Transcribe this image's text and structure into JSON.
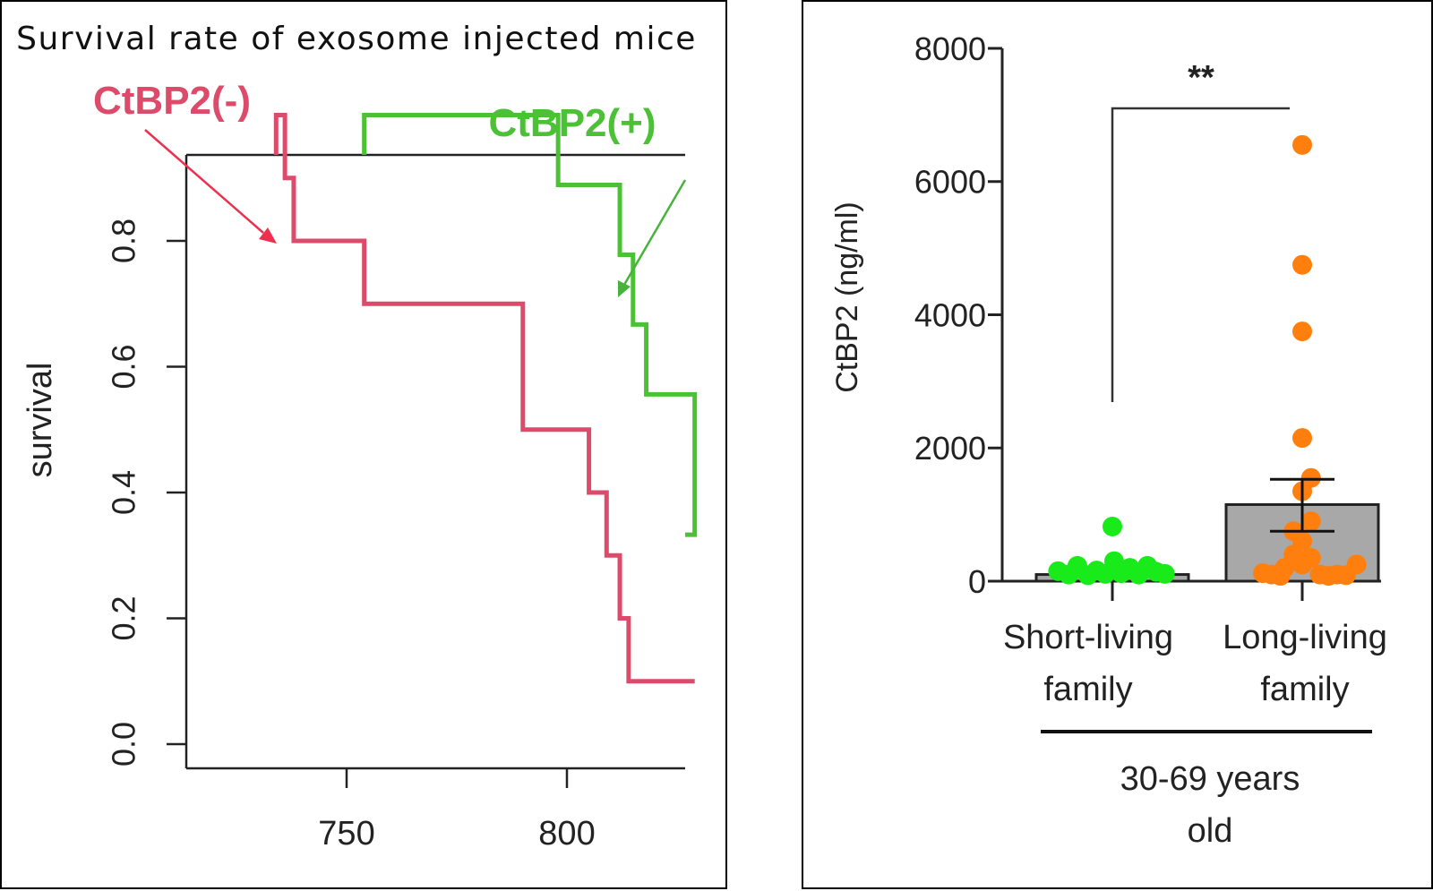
{
  "colors": {
    "ctbp2_minus": "#DC4B6A",
    "ctbp2_plus": "#4CC136",
    "arrow_minus": "#EE2F4E",
    "arrow_plus": "#47B33A",
    "short_points": "#19EA19",
    "long_points": "#FF7F0E",
    "bar_fill": "#A8A8A8",
    "axis": "#222222"
  },
  "chart_data": [
    {
      "type": "line",
      "title": "Survival rate of exosome injected mice",
      "ylabel": "survival",
      "xlabel": "",
      "xlim": [
        716,
        829
      ],
      "ylim": [
        0,
        1
      ],
      "x_ticks": [
        750,
        800
      ],
      "y_ticks": [
        "0.0",
        "0.2",
        "0.4",
        "0.6",
        "0.8"
      ],
      "y_tick_values": [
        0,
        0.2,
        0.4,
        0.6,
        0.8
      ],
      "step": true,
      "series": [
        {
          "name": "CtBP2(-)",
          "color": "#DC4B6A",
          "x": [
            734,
            736,
            738,
            754,
            790,
            805,
            809,
            812,
            814,
            816,
            829
          ],
          "y": [
            1.0,
            0.9,
            0.8,
            0.7,
            0.5,
            0.4,
            0.3,
            0.2,
            0.1,
            0.1,
            0.1
          ]
        },
        {
          "name": "CtBP2(+)",
          "color": "#4CC136",
          "x": [
            754,
            798,
            812,
            815,
            818,
            829
          ],
          "y": [
            1.0,
            0.889,
            0.778,
            0.667,
            0.556,
            0.333
          ]
        }
      ],
      "annotations": [
        "CtBP2(-)",
        "CtBP2(+)"
      ]
    },
    {
      "type": "bar",
      "ylabel": "CtBP2 (ng/ml)",
      "ylim": [
        0,
        8000
      ],
      "y_ticks": [
        "0",
        "2000",
        "4000",
        "6000",
        "8000"
      ],
      "y_tick_values": [
        0,
        2000,
        4000,
        6000,
        8000
      ],
      "categories": [
        "Short-living family",
        "Long-living family"
      ],
      "category_lines": [
        [
          "Short-living",
          "family"
        ],
        [
          "Long-living",
          "family"
        ]
      ],
      "group_label": [
        "30-69 years",
        "old"
      ],
      "bars": [
        {
          "category": "Short-living family",
          "mean": 100,
          "sem_low": 80,
          "sem_high": 120
        },
        {
          "category": "Long-living family",
          "mean": 1150,
          "sem_low": 750,
          "sem_high": 1530
        }
      ],
      "points": {
        "Short-living family": [
          {
            "offset": -0.62,
            "value": 150
          },
          {
            "offset": -0.5,
            "value": 100
          },
          {
            "offset": -0.4,
            "value": 230
          },
          {
            "offset": -0.28,
            "value": 90
          },
          {
            "offset": -0.18,
            "value": 160
          },
          {
            "offset": -0.08,
            "value": 110
          },
          {
            "offset": 0.0,
            "value": 820
          },
          {
            "offset": 0.02,
            "value": 300
          },
          {
            "offset": 0.1,
            "value": 120
          },
          {
            "offset": 0.2,
            "value": 200
          },
          {
            "offset": 0.3,
            "value": 100
          },
          {
            "offset": 0.4,
            "value": 230
          },
          {
            "offset": 0.5,
            "value": 140
          },
          {
            "offset": 0.6,
            "value": 110
          }
        ],
        "Long-living family": [
          {
            "offset": 0.0,
            "value": 6550
          },
          {
            "offset": 0.0,
            "value": 4750
          },
          {
            "offset": 0.0,
            "value": 3750
          },
          {
            "offset": 0.0,
            "value": 2150
          },
          {
            "offset": 0.1,
            "value": 1550
          },
          {
            "offset": 0.0,
            "value": 1350
          },
          {
            "offset": 0.1,
            "value": 900
          },
          {
            "offset": -0.1,
            "value": 750
          },
          {
            "offset": 0.0,
            "value": 600
          },
          {
            "offset": -0.1,
            "value": 400
          },
          {
            "offset": 0.1,
            "value": 350
          },
          {
            "offset": -0.2,
            "value": 200
          },
          {
            "offset": 0.0,
            "value": 250
          },
          {
            "offset": -0.45,
            "value": 120
          },
          {
            "offset": -0.35,
            "value": 100
          },
          {
            "offset": -0.25,
            "value": 80
          },
          {
            "offset": 0.2,
            "value": 100
          },
          {
            "offset": 0.3,
            "value": 80
          },
          {
            "offset": 0.4,
            "value": 100
          },
          {
            "offset": 0.5,
            "value": 90
          },
          {
            "offset": 0.62,
            "value": 250
          }
        ]
      },
      "significance": "**"
    }
  ]
}
